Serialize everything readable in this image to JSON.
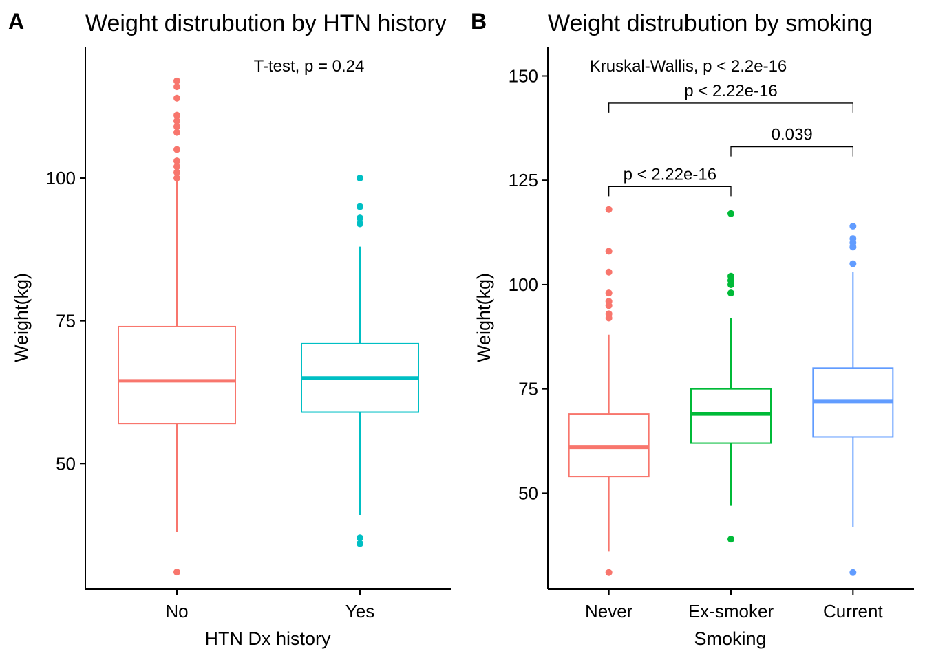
{
  "chart_data": [
    {
      "type": "box",
      "panel_tag": "A",
      "title": "Weight distrubution by HTN history",
      "xlabel": "HTN Dx history",
      "ylabel": "Weight(kg)",
      "ylim": [
        28,
        123
      ],
      "yticks": [
        50,
        75,
        100
      ],
      "annotation": "T-test, p = 0.24",
      "categories": [
        "No",
        "Yes"
      ],
      "colors": [
        "#F8766D",
        "#00BFC4"
      ],
      "boxes": [
        {
          "category": "No",
          "whisker_low": 38,
          "q1": 57,
          "median": 64.5,
          "q3": 74,
          "whisker_high": 100,
          "outliers": [
            117,
            116,
            114,
            111,
            110,
            109,
            108,
            105,
            103,
            102,
            101,
            100,
            31
          ]
        },
        {
          "category": "Yes",
          "whisker_low": 41,
          "q1": 59,
          "median": 65,
          "q3": 71,
          "whisker_high": 88,
          "outliers": [
            100,
            95,
            93,
            92,
            37,
            36
          ]
        }
      ]
    },
    {
      "type": "box",
      "panel_tag": "B",
      "title": "Weight distrubution by smoking",
      "xlabel": "Smoking",
      "ylabel": "Weight(kg)",
      "ylim": [
        27,
        157
      ],
      "yticks": [
        50,
        75,
        100,
        125,
        150
      ],
      "annotation": "Kruskal-Wallis, p < 2.2e-16",
      "categories": [
        "Never",
        "Ex-smoker",
        "Current"
      ],
      "colors": [
        "#F8766D",
        "#00BA38",
        "#619CFF"
      ],
      "boxes": [
        {
          "category": "Never",
          "whisker_low": 36,
          "q1": 54,
          "median": 61,
          "q3": 69,
          "whisker_high": 88,
          "outliers": [
            118,
            108,
            103,
            98,
            96,
            95,
            93,
            92,
            31
          ]
        },
        {
          "category": "Ex-smoker",
          "whisker_low": 47,
          "q1": 62,
          "median": 69,
          "q3": 75,
          "whisker_high": 92,
          "outliers": [
            117,
            102,
            101,
            100,
            98,
            39
          ]
        },
        {
          "category": "Current",
          "whisker_low": 42,
          "q1": 63.5,
          "median": 72,
          "q3": 80,
          "whisker_high": 103,
          "outliers": [
            114,
            111,
            110,
            109,
            105,
            31
          ]
        }
      ],
      "comparisons": [
        {
          "from": 0,
          "to": 1,
          "label": "p < 2.22e-16",
          "y": 123.5
        },
        {
          "from": 1,
          "to": 2,
          "label": "0.039",
          "y": 133
        },
        {
          "from": 0,
          "to": 2,
          "label": "p < 2.22e-16",
          "y": 143.5
        }
      ]
    }
  ]
}
